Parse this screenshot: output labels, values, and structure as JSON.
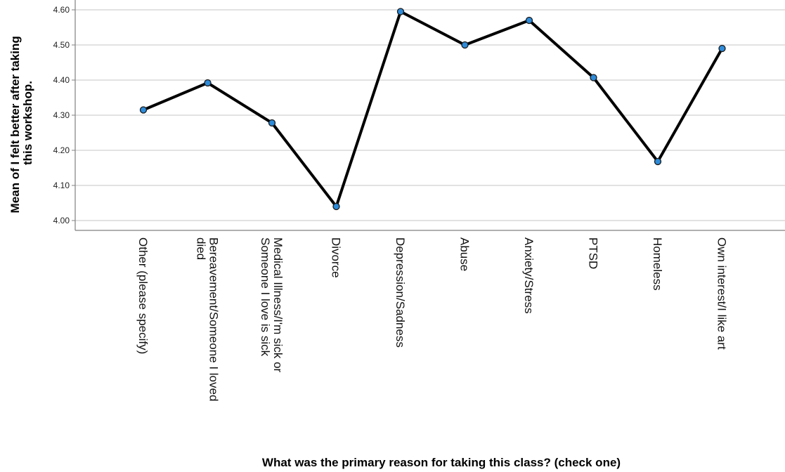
{
  "chart_data": {
    "type": "line",
    "xlabel": "What was the primary reason for taking this class? (check one)",
    "ylabel_lines": [
      "Mean of I felt better after taking",
      "this workshop."
    ],
    "ylim": [
      3.96,
      4.62
    ],
    "yticks": [
      "4.00",
      "4.10",
      "4.20",
      "4.30",
      "4.40",
      "4.50",
      "4.60"
    ],
    "grid": true,
    "categories": [
      [
        "Other (please specify)"
      ],
      [
        "Bereavement/Someone I loved",
        "died"
      ],
      [
        "Medical Illness/I'm sick or",
        "Someone I love is sick"
      ],
      [
        "Divorce"
      ],
      [
        "Depression/Sadness"
      ],
      [
        "Abuse"
      ],
      [
        "Anxiety/Stress"
      ],
      [
        "PTSD"
      ],
      [
        "Homeless"
      ],
      [
        "Own interest/I like art"
      ]
    ],
    "values": [
      4.315,
      4.392,
      4.278,
      4.04,
      4.595,
      4.5,
      4.57,
      4.407,
      4.168,
      4.49
    ],
    "colors": {
      "line": "#000000",
      "marker": "#2e8bd9",
      "marker_edge": "#1a1a1a",
      "grid": "#d0d0d0",
      "axis": "#808080"
    }
  }
}
